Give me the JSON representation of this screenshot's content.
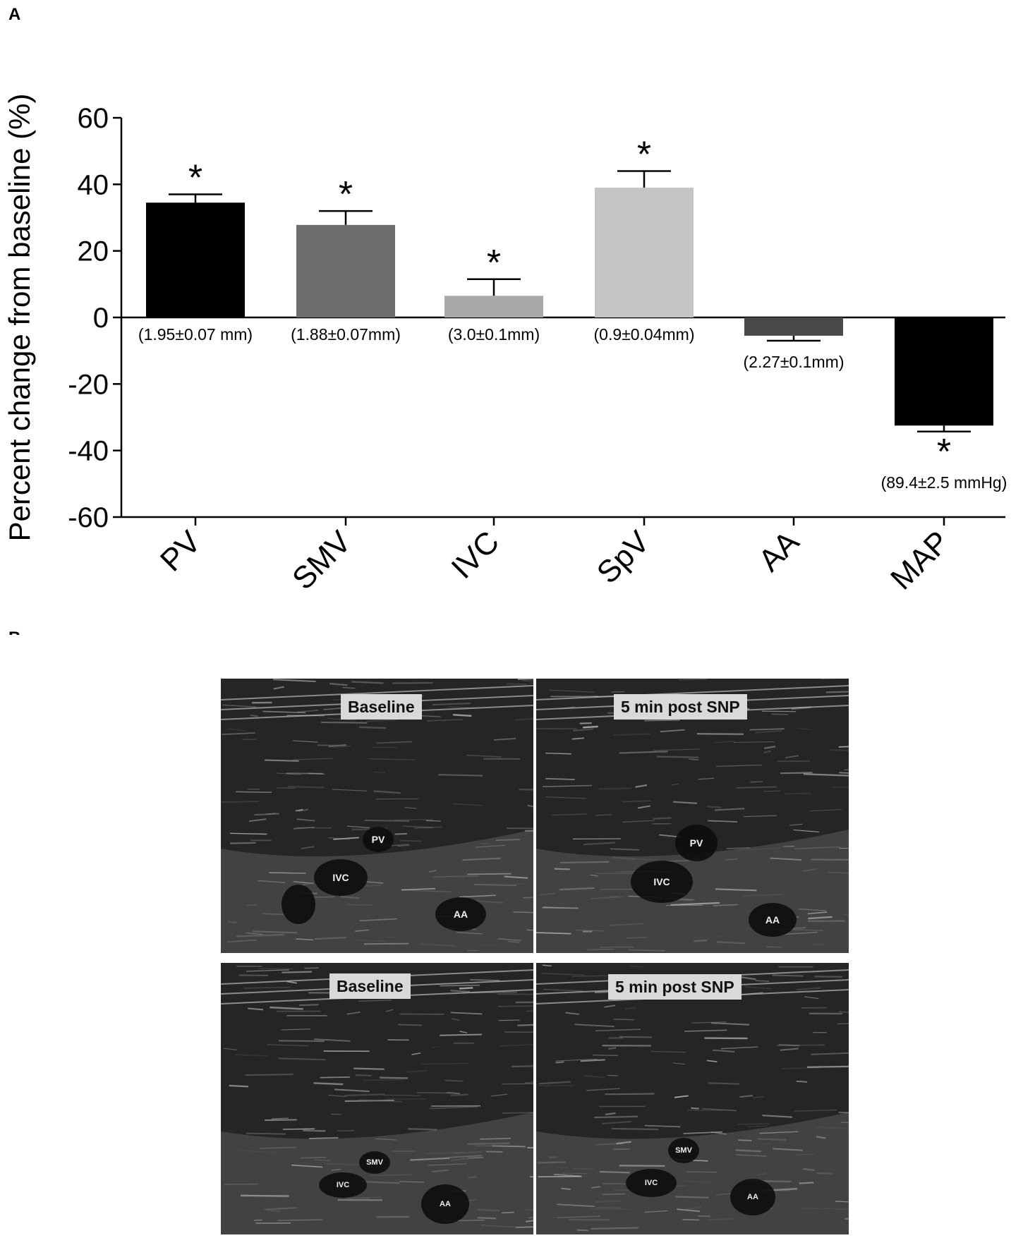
{
  "panel_a_letter": "A",
  "panel_b_letter": "B",
  "chart_data": {
    "type": "bar",
    "title": "",
    "xlabel": "",
    "ylabel": "Percent change from baseline (%)",
    "ylim": [
      -60,
      60
    ],
    "yticks": [
      60,
      40,
      20,
      0,
      -20,
      -40,
      -60
    ],
    "categories": [
      "PV",
      "SMV",
      "IVC",
      "SpV",
      "AA",
      "MAP"
    ],
    "values": [
      34.5,
      27.8,
      6.5,
      39.0,
      -5.5,
      -32.5
    ],
    "errors": [
      2.5,
      4.2,
      5.0,
      5.0,
      1.5,
      1.8
    ],
    "significance": [
      "*",
      "*",
      "*",
      "*",
      "",
      "*"
    ],
    "baseline_labels": [
      "(1.95±0.07 mm)",
      "(1.88±0.07mm)",
      "(3.0±0.1mm)",
      "(0.9±0.04mm)",
      "(2.27±0.1mm)",
      "(89.4±2.5 mmHg)"
    ],
    "bar_colors": [
      "#000000",
      "#6e6e6e",
      "#a9a9a9",
      "#c4c4c4",
      "#4a4a4a",
      "#000000"
    ],
    "grid": false,
    "legend": "none"
  },
  "ultrasound": {
    "top_left": {
      "label": "Baseline",
      "vessels": [
        "PV",
        "IVC",
        "AA"
      ]
    },
    "top_right": {
      "label": "5 min post SNP",
      "vessels": [
        "PV",
        "IVC",
        "AA"
      ]
    },
    "bottom_left": {
      "label": "Baseline",
      "vessels": [
        "SMV",
        "IVC",
        "AA"
      ]
    },
    "bottom_right": {
      "label": "5 min post SNP",
      "vessels": [
        "SMV",
        "IVC",
        "AA"
      ]
    }
  }
}
